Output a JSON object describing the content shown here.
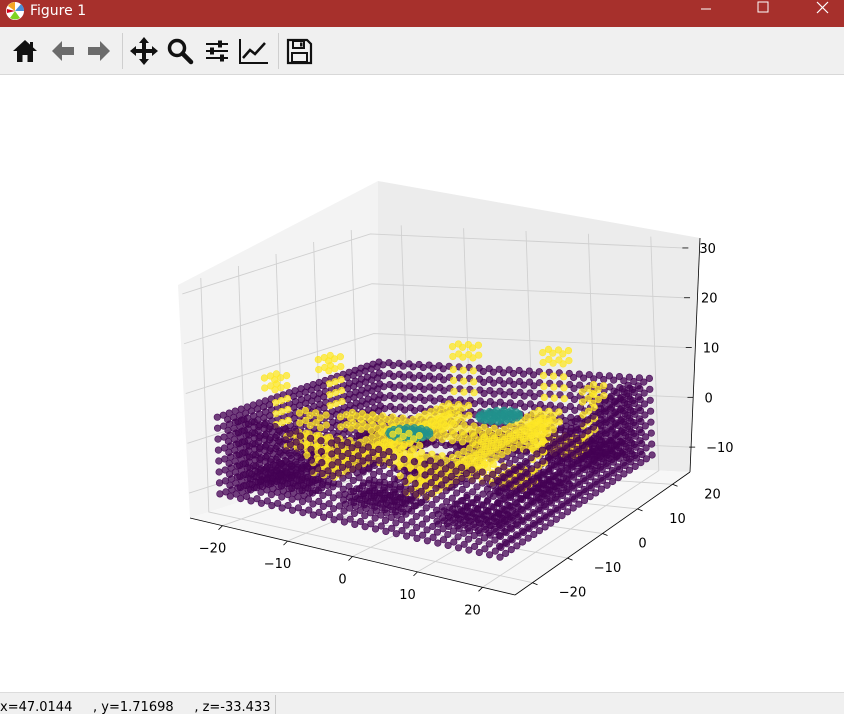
{
  "window": {
    "title": "Figure 1",
    "controls": [
      "minimize",
      "maximize",
      "close"
    ],
    "titlebar_color": "#a7302c"
  },
  "toolbar": {
    "buttons": [
      {
        "name": "home",
        "icon": "home-icon"
      },
      {
        "name": "back",
        "icon": "arrow-left-icon"
      },
      {
        "name": "forward",
        "icon": "arrow-right-icon"
      },
      {
        "name": "pan",
        "icon": "move-icon"
      },
      {
        "name": "zoom",
        "icon": "magnifier-icon"
      },
      {
        "name": "subplots",
        "icon": "sliders-icon"
      },
      {
        "name": "customize",
        "icon": "line-chart-icon"
      },
      {
        "name": "save",
        "icon": "floppy-disk-icon"
      }
    ]
  },
  "chart_data": {
    "type": "scatter",
    "projection": "3d",
    "title": "",
    "xlabel": "",
    "ylabel": "",
    "zlabel": "",
    "xlim": [
      -25,
      25
    ],
    "ylim": [
      -25,
      25
    ],
    "zlim": [
      -15,
      32
    ],
    "x_ticks": [
      "−20",
      "−10",
      "0",
      "10",
      "20"
    ],
    "y_ticks": [
      "−20",
      "−10",
      "0",
      "10",
      "20"
    ],
    "z_ticks": [
      "−10",
      "0",
      "10",
      "20",
      "30"
    ],
    "grid": true,
    "colors": {
      "purple": "#440154",
      "yellow": "#fde725",
      "teal": "#21918c"
    },
    "series": [
      {
        "color": "#440154",
        "values": "dense grid of points forming square cells and raised outer rim"
      },
      {
        "color": "#fde725",
        "values": "cross-shaped channels between cells and inner rim"
      },
      {
        "color": "#21918c",
        "values": "two disc-shaped clusters on the channels"
      }
    ]
  },
  "status": {
    "x_readout": "x=47.0144",
    "y_readout": "y=1.71698",
    "z_readout": "z=-33.433"
  }
}
